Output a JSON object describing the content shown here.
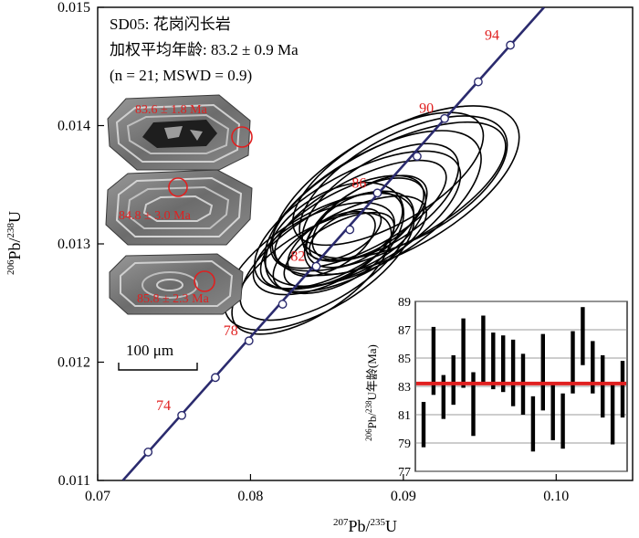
{
  "chart_data": [
    {
      "type": "scatter",
      "subtype": "concordia",
      "info_lines": [
        "SD05: 花岗闪长岩",
        "加权平均年龄: 83.2 ± 0.9 Ma",
        "(n = 21; MSWD = 0.9)"
      ],
      "xlabel": "207Pb/235U",
      "ylabel": "206Pb/238U",
      "xlim": [
        0.07,
        0.105
      ],
      "ylim": [
        0.011,
        0.015
      ],
      "x_ticks": [
        0.07,
        0.08,
        0.09,
        0.1
      ],
      "x_tick_labels": [
        "0.07",
        "0.08",
        "0.09",
        "0.10"
      ],
      "y_ticks": [
        0.011,
        0.012,
        0.013,
        0.014,
        0.015
      ],
      "y_tick_labels": [
        "0.011",
        "0.012",
        "0.013",
        "0.014",
        "0.015"
      ],
      "concordia_color": "#2b2b6e",
      "concordia_points": [
        {
          "age": 72,
          "x": 0.0733,
          "y": 0.01124,
          "label": ""
        },
        {
          "age": 74,
          "x": 0.0755,
          "y": 0.01155,
          "label": "74"
        },
        {
          "age": 76,
          "x": 0.0777,
          "y": 0.01187,
          "label": ""
        },
        {
          "age": 78,
          "x": 0.0799,
          "y": 0.01218,
          "label": "78"
        },
        {
          "age": 80,
          "x": 0.0821,
          "y": 0.01249,
          "label": ""
        },
        {
          "age": 82,
          "x": 0.0843,
          "y": 0.01281,
          "label": "82"
        },
        {
          "age": 84,
          "x": 0.0865,
          "y": 0.01312,
          "label": ""
        },
        {
          "age": 86,
          "x": 0.0883,
          "y": 0.01343,
          "label": "86"
        },
        {
          "age": 88,
          "x": 0.0909,
          "y": 0.01374,
          "label": ""
        },
        {
          "age": 90,
          "x": 0.0927,
          "y": 0.01406,
          "label": "90"
        },
        {
          "age": 92,
          "x": 0.0949,
          "y": 0.01437,
          "label": ""
        },
        {
          "age": 94,
          "x": 0.097,
          "y": 0.01468,
          "label": "94"
        }
      ],
      "ellipses": [
        {
          "cx": 0.0855,
          "cy": 0.01305,
          "rx": 0.005,
          "ry": 0.00038,
          "angle": 0.62
        },
        {
          "cx": 0.086,
          "cy": 0.0131,
          "rx": 0.006,
          "ry": 0.00032,
          "angle": 0.58
        },
        {
          "cx": 0.087,
          "cy": 0.0132,
          "rx": 0.0075,
          "ry": 0.0004,
          "angle": 0.55
        },
        {
          "cx": 0.088,
          "cy": 0.0133,
          "rx": 0.008,
          "ry": 0.00045,
          "angle": 0.6
        },
        {
          "cx": 0.089,
          "cy": 0.0134,
          "rx": 0.0085,
          "ry": 0.00042,
          "angle": 0.52
        },
        {
          "cx": 0.085,
          "cy": 0.0129,
          "rx": 0.0065,
          "ry": 0.00036,
          "angle": 0.64
        },
        {
          "cx": 0.0865,
          "cy": 0.013,
          "rx": 0.0055,
          "ry": 0.00028,
          "angle": 0.5
        },
        {
          "cx": 0.0875,
          "cy": 0.01315,
          "rx": 0.0045,
          "ry": 0.0003,
          "angle": 0.66
        },
        {
          "cx": 0.0845,
          "cy": 0.01285,
          "rx": 0.007,
          "ry": 0.0004,
          "angle": 0.6
        },
        {
          "cx": 0.0858,
          "cy": 0.01295,
          "rx": 0.004,
          "ry": 0.00022,
          "angle": 0.55
        },
        {
          "cx": 0.0868,
          "cy": 0.01312,
          "rx": 0.0035,
          "ry": 0.00025,
          "angle": 0.62
        },
        {
          "cx": 0.089,
          "cy": 0.01355,
          "rx": 0.007,
          "ry": 0.00038,
          "angle": 0.58
        },
        {
          "cx": 0.0895,
          "cy": 0.01345,
          "rx": 0.009,
          "ry": 0.0005,
          "angle": 0.56
        },
        {
          "cx": 0.084,
          "cy": 0.01275,
          "rx": 0.006,
          "ry": 0.00034,
          "angle": 0.66
        },
        {
          "cx": 0.0872,
          "cy": 0.01325,
          "rx": 0.0062,
          "ry": 0.0003,
          "angle": 0.52
        },
        {
          "cx": 0.0853,
          "cy": 0.013,
          "rx": 0.0032,
          "ry": 0.0002,
          "angle": 0.6
        },
        {
          "cx": 0.0862,
          "cy": 0.01308,
          "rx": 0.0026,
          "ry": 0.00016,
          "angle": 0.57
        },
        {
          "cx": 0.0885,
          "cy": 0.01335,
          "rx": 0.0058,
          "ry": 0.00035,
          "angle": 0.63
        },
        {
          "cx": 0.0848,
          "cy": 0.01296,
          "rx": 0.005,
          "ry": 0.0003,
          "angle": 0.48
        },
        {
          "cx": 0.0878,
          "cy": 0.01322,
          "rx": 0.0042,
          "ry": 0.00026,
          "angle": 0.6
        },
        {
          "cx": 0.09,
          "cy": 0.01348,
          "rx": 0.0075,
          "ry": 0.00044,
          "angle": 0.54
        }
      ]
    },
    {
      "type": "bar",
      "subtype": "weighted-mean error bars",
      "ylabel": "206Pb/238U年龄(Ma)",
      "ylim": [
        77,
        89
      ],
      "y_ticks": [
        77,
        79,
        81,
        83,
        85,
        87,
        89
      ],
      "y_tick_labels": [
        "77",
        "79",
        "81",
        "83",
        "85",
        "87",
        "89"
      ],
      "grid": true,
      "mean": 83.2,
      "mean_color": "#e02020",
      "bars": [
        {
          "low": 78.7,
          "high": 81.9
        },
        {
          "low": 82.4,
          "high": 87.2
        },
        {
          "low": 80.7,
          "high": 83.8
        },
        {
          "low": 81.7,
          "high": 85.2
        },
        {
          "low": 82.9,
          "high": 87.8
        },
        {
          "low": 79.5,
          "high": 84.0
        },
        {
          "low": 83.1,
          "high": 88.0
        },
        {
          "low": 82.8,
          "high": 86.8
        },
        {
          "low": 82.6,
          "high": 86.6
        },
        {
          "low": 81.6,
          "high": 86.3
        },
        {
          "low": 81.0,
          "high": 85.3
        },
        {
          "low": 78.4,
          "high": 82.3
        },
        {
          "low": 81.3,
          "high": 86.7
        },
        {
          "low": 79.2,
          "high": 83.2
        },
        {
          "low": 78.6,
          "high": 82.5
        },
        {
          "low": 82.5,
          "high": 86.9
        },
        {
          "low": 84.5,
          "high": 88.6
        },
        {
          "low": 82.5,
          "high": 86.2
        },
        {
          "low": 80.8,
          "high": 85.2
        },
        {
          "low": 78.9,
          "high": 83.2
        },
        {
          "low": 80.8,
          "high": 84.8
        }
      ]
    }
  ],
  "grain_images": [
    {
      "age_label": "83.6 ± 1.8 Ma"
    },
    {
      "age_label": "84.8 ± 3.0 Ma"
    },
    {
      "age_label": "85.8 ± 2.3 Ma"
    }
  ],
  "scale_bar": {
    "label": "100 μm"
  }
}
